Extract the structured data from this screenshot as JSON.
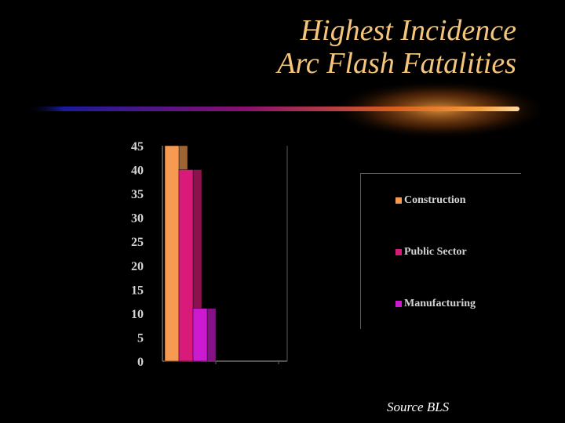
{
  "title": {
    "line1": "Highest Incidence",
    "line2": "Arc Flash Fatalities"
  },
  "source": "Source BLS",
  "colors": {
    "title": "#f4c57a",
    "background": "#000000",
    "divider_start": "#1a1a9a",
    "divider_mid": "#8a1070",
    "divider_end": "#f5a040"
  },
  "chart_data": {
    "type": "bar",
    "categories": [
      ""
    ],
    "series": [
      {
        "name": "Construction",
        "values": [
          45
        ],
        "color": "#f59a50"
      },
      {
        "name": "Public Sector",
        "values": [
          40
        ],
        "color": "#d81a78"
      },
      {
        "name": "Manufacturing",
        "values": [
          11
        ],
        "color": "#cc1ad0"
      }
    ],
    "yticks": [
      "0",
      "5",
      "10",
      "15",
      "20",
      "25",
      "30",
      "35",
      "40",
      "45"
    ],
    "ylim": [
      0,
      45
    ],
    "legend_position": "right",
    "grid": false
  }
}
